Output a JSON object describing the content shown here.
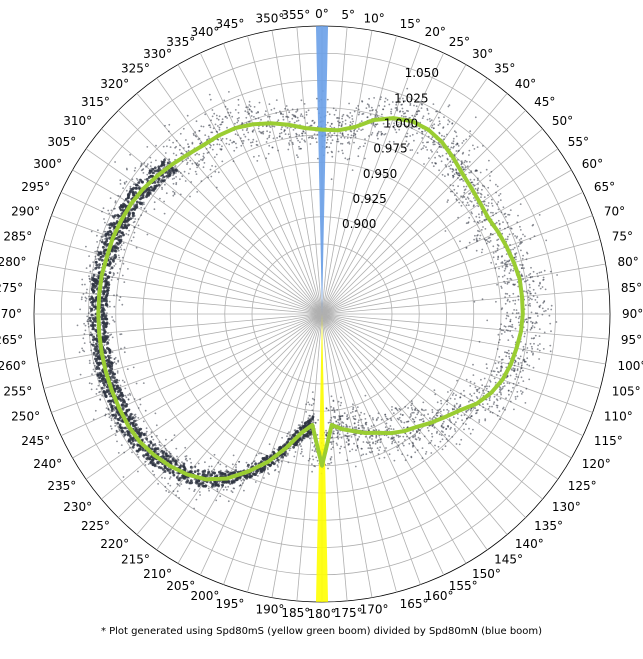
{
  "chart_data": {
    "type": "polar",
    "theta_zero": "top",
    "theta_direction": "clockwise",
    "theta_ticks": [
      0,
      5,
      10,
      15,
      20,
      25,
      30,
      35,
      40,
      45,
      50,
      55,
      60,
      65,
      70,
      75,
      80,
      85,
      90,
      95,
      100,
      105,
      110,
      115,
      120,
      125,
      130,
      135,
      140,
      145,
      150,
      155,
      160,
      165,
      170,
      175,
      180,
      185,
      190,
      195,
      200,
      205,
      210,
      215,
      220,
      225,
      230,
      235,
      240,
      245,
      250,
      255,
      260,
      265,
      270,
      275,
      280,
      285,
      290,
      295,
      300,
      305,
      310,
      315,
      320,
      325,
      330,
      335,
      340,
      345,
      350,
      355
    ],
    "theta_tick_labels": [
      "0°",
      "5°",
      "10°",
      "15°",
      "20°",
      "25°",
      "30°",
      "35°",
      "40°",
      "45°",
      "50°",
      "55°",
      "60°",
      "65°",
      "70°",
      "75°",
      "80°",
      "85°",
      "90°",
      "95°",
      "100°",
      "105°",
      "110°",
      "115°",
      "120°",
      "125°",
      "130°",
      "135°",
      "140°",
      "145°",
      "150°",
      "155°",
      "160°",
      "165°",
      "170°",
      "175°",
      "180°",
      "185°",
      "190°",
      "195°",
      "200°",
      "205°",
      "210°",
      "215°",
      "220°",
      "225°",
      "230°",
      "235°",
      "240°",
      "245°",
      "250°",
      "255°",
      "260°",
      "265°",
      "270°",
      "275°",
      "280°",
      "285°",
      "290°",
      "295°",
      "300°",
      "305°",
      "310°",
      "315°",
      "320°",
      "325°",
      "330°",
      "335°",
      "340°",
      "345°",
      "350°",
      "355°"
    ],
    "r_ticks": [
      0.9,
      0.925,
      0.95,
      0.975,
      1.0,
      1.025,
      1.05
    ],
    "r_tick_labels": [
      "0.900",
      "0.925",
      "0.950",
      "0.975",
      "1.000",
      "1.025",
      "1.050"
    ],
    "r_min": 0.875,
    "r_max": 1.075,
    "grid": true,
    "series": [
      {
        "style": "line",
        "color": "#9acd32",
        "theta": [
          0,
          5,
          10,
          15,
          20,
          25,
          30,
          35,
          40,
          45,
          50,
          55,
          60,
          65,
          70,
          75,
          80,
          85,
          90,
          95,
          100,
          105,
          110,
          115,
          120,
          125,
          130,
          135,
          140,
          145,
          150,
          155,
          160,
          165,
          170,
          175,
          180,
          185,
          190,
          195,
          200,
          205,
          210,
          215,
          220,
          225,
          230,
          235,
          240,
          245,
          250,
          255,
          260,
          265,
          270,
          275,
          280,
          285,
          290,
          295,
          300,
          305,
          310,
          315,
          320,
          325,
          330,
          335,
          340,
          345,
          350,
          355
        ],
        "r": [
          0.98,
          0.98,
          0.985,
          0.995,
          1.002,
          1.006,
          1.006,
          1.003,
          0.998,
          0.993,
          0.99,
          0.988,
          0.987,
          0.989,
          0.991,
          0.993,
          0.995,
          0.995,
          0.995,
          0.994,
          0.992,
          0.99,
          0.987,
          0.982,
          0.975,
          0.965,
          0.958,
          0.952,
          0.946,
          0.942,
          0.937,
          0.931,
          0.927,
          0.922,
          0.918,
          0.913,
          0.95,
          0.913,
          0.922,
          0.938,
          0.955,
          0.97,
          0.985,
          0.996,
          1.003,
          1.008,
          1.012,
          1.015,
          1.016,
          1.016,
          1.016,
          1.016,
          1.016,
          1.016,
          1.016,
          1.016,
          1.016,
          1.015,
          1.015,
          1.014,
          1.013,
          1.011,
          1.008,
          1.005,
          1.002,
          1.0,
          1.0,
          0.999,
          0.996,
          0.992,
          0.987,
          0.982
        ]
      },
      {
        "style": "scatter",
        "color": "#2f3542",
        "note_band_width": 0.01
      },
      {
        "style": "spike",
        "color": "#6aa0e8",
        "theta": [
          0
        ],
        "r": [
          1.075
        ]
      },
      {
        "style": "spike",
        "color": "#ffff00",
        "theta": [
          180
        ],
        "r": [
          1.075
        ]
      }
    ]
  },
  "caption": "* Plot generated using Spd80mS (yellow green boom) divided by Spd80mN (blue boom)"
}
